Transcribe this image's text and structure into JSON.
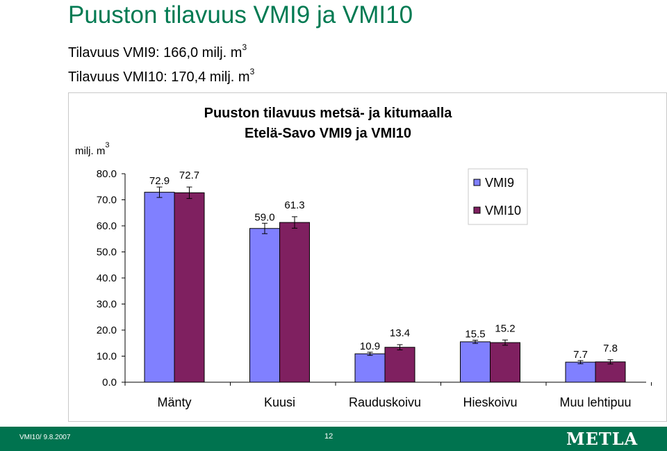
{
  "slide": {
    "title": "Puuston tilavuus VMI9 ja VMI10",
    "volume_vmi9_prefix": "Tilavuus VMI9: 166,0 milj. m",
    "volume_vmi10_prefix": "Tilavuus VMI10: 170,4 milj. m",
    "superscript": "3"
  },
  "chart_data": {
    "type": "bar",
    "title": "Puuston tilavuus metsä- ja kitumaalla",
    "subtitle": "Etelä-Savo VMI9 ja VMI10",
    "ylabel": "milj. m",
    "ylabel_superscript": "3",
    "xlabel": "",
    "ylim": [
      0,
      80
    ],
    "yticks": [
      "0.0",
      "10.0",
      "20.0",
      "30.0",
      "40.0",
      "50.0",
      "60.0",
      "70.0",
      "80.0"
    ],
    "categories": [
      "Mänty",
      "Kuusi",
      "Rauduskoivu",
      "Hieskoivu",
      "Muu lehtipuu"
    ],
    "series": [
      {
        "name": "VMI9",
        "color": "#8080ff",
        "values": [
          72.9,
          59.0,
          10.9,
          15.5,
          7.7
        ],
        "labels": [
          "72.9",
          "59.0",
          "10.9",
          "15.5",
          "7.7"
        ],
        "error": [
          2.0,
          2.0,
          0.6,
          0.6,
          0.6
        ]
      },
      {
        "name": "VMI10",
        "color": "#7f2060",
        "values": [
          72.7,
          61.3,
          13.4,
          15.2,
          7.8
        ],
        "labels": [
          "72.7",
          "61.3",
          "13.4",
          "15.2",
          "7.8"
        ],
        "error": [
          2.2,
          2.2,
          1.0,
          1.0,
          0.8
        ]
      }
    ],
    "grid": false,
    "legend": "top-right",
    "error_bars": true
  },
  "footer": {
    "left_text": "VMI10/ 9.8.2007",
    "page_number": "12",
    "logo_text": "METLA"
  }
}
